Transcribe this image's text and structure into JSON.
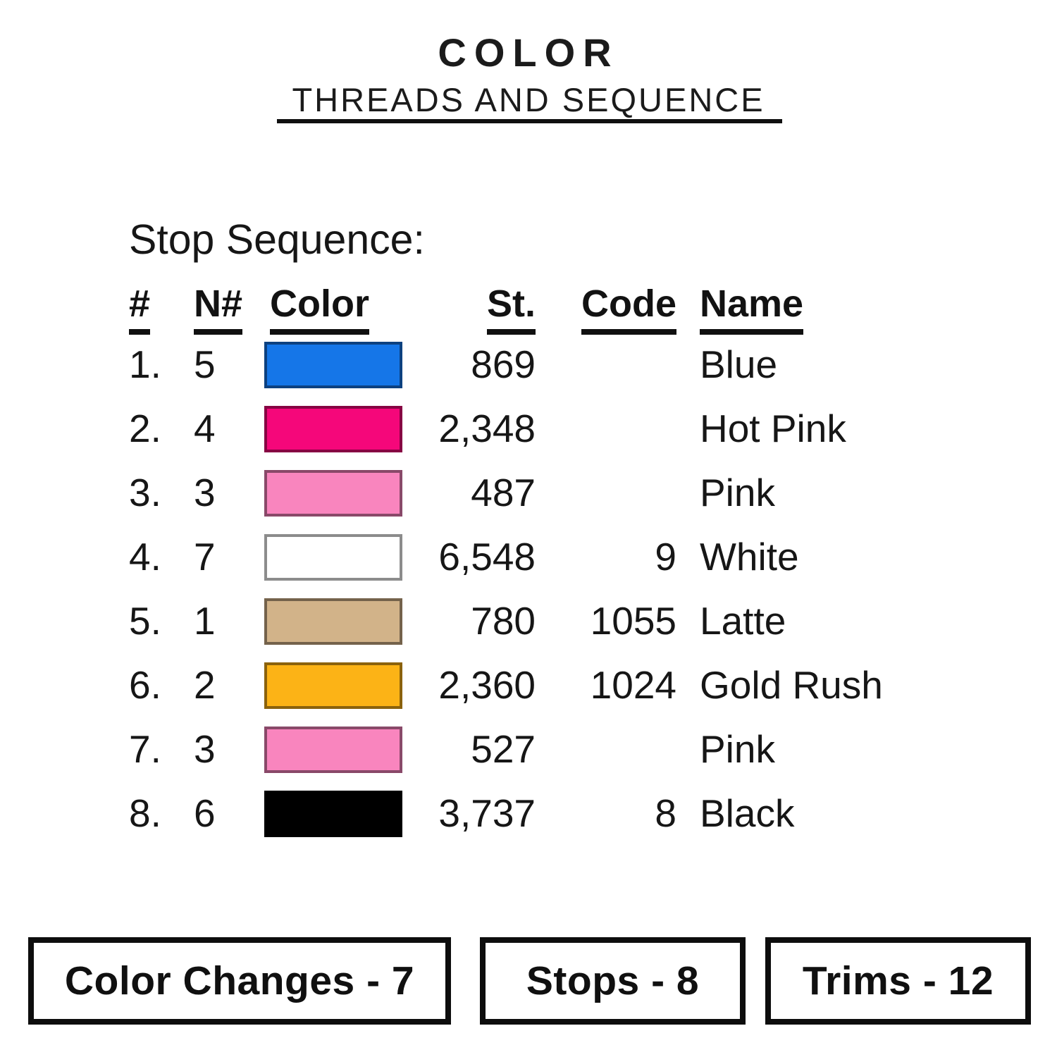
{
  "title": {
    "line1": "COLOR",
    "line2": "THREADS AND SEQUENCE"
  },
  "section_heading": "Stop Sequence:",
  "table": {
    "headers": {
      "index": "#",
      "needle": "N#",
      "color": "Color",
      "stitches": "St.",
      "code": "Code",
      "name": "Name"
    },
    "rows": [
      {
        "index": "1.",
        "needle": "5",
        "swatch_color": "#1576E8",
        "stitches": "869",
        "code": "",
        "name": "Blue"
      },
      {
        "index": "2.",
        "needle": "4",
        "swatch_color": "#F5077A",
        "stitches": "2,348",
        "code": "",
        "name": "Hot Pink"
      },
      {
        "index": "3.",
        "needle": "3",
        "swatch_color": "#F985BE",
        "stitches": "487",
        "code": "",
        "name": "Pink"
      },
      {
        "index": "4.",
        "needle": "7",
        "swatch_color": "#FFFFFF",
        "stitches": "6,548",
        "code": "9",
        "name": "White"
      },
      {
        "index": "5.",
        "needle": "1",
        "swatch_color": "#D2B389",
        "stitches": "780",
        "code": "1055",
        "name": "Latte"
      },
      {
        "index": "6.",
        "needle": "2",
        "swatch_color": "#FCB316",
        "stitches": "2,360",
        "code": "1024",
        "name": "Gold Rush"
      },
      {
        "index": "7.",
        "needle": "3",
        "swatch_color": "#F985BE",
        "stitches": "527",
        "code": "",
        "name": "Pink"
      },
      {
        "index": "8.",
        "needle": "6",
        "swatch_color": "#000000",
        "stitches": "3,737",
        "code": "8",
        "name": "Black"
      }
    ]
  },
  "footer": {
    "boxes": [
      {
        "label": "Color Changes - 7"
      },
      {
        "label": "Stops - 8"
      },
      {
        "label": "Trims - 12"
      }
    ]
  }
}
